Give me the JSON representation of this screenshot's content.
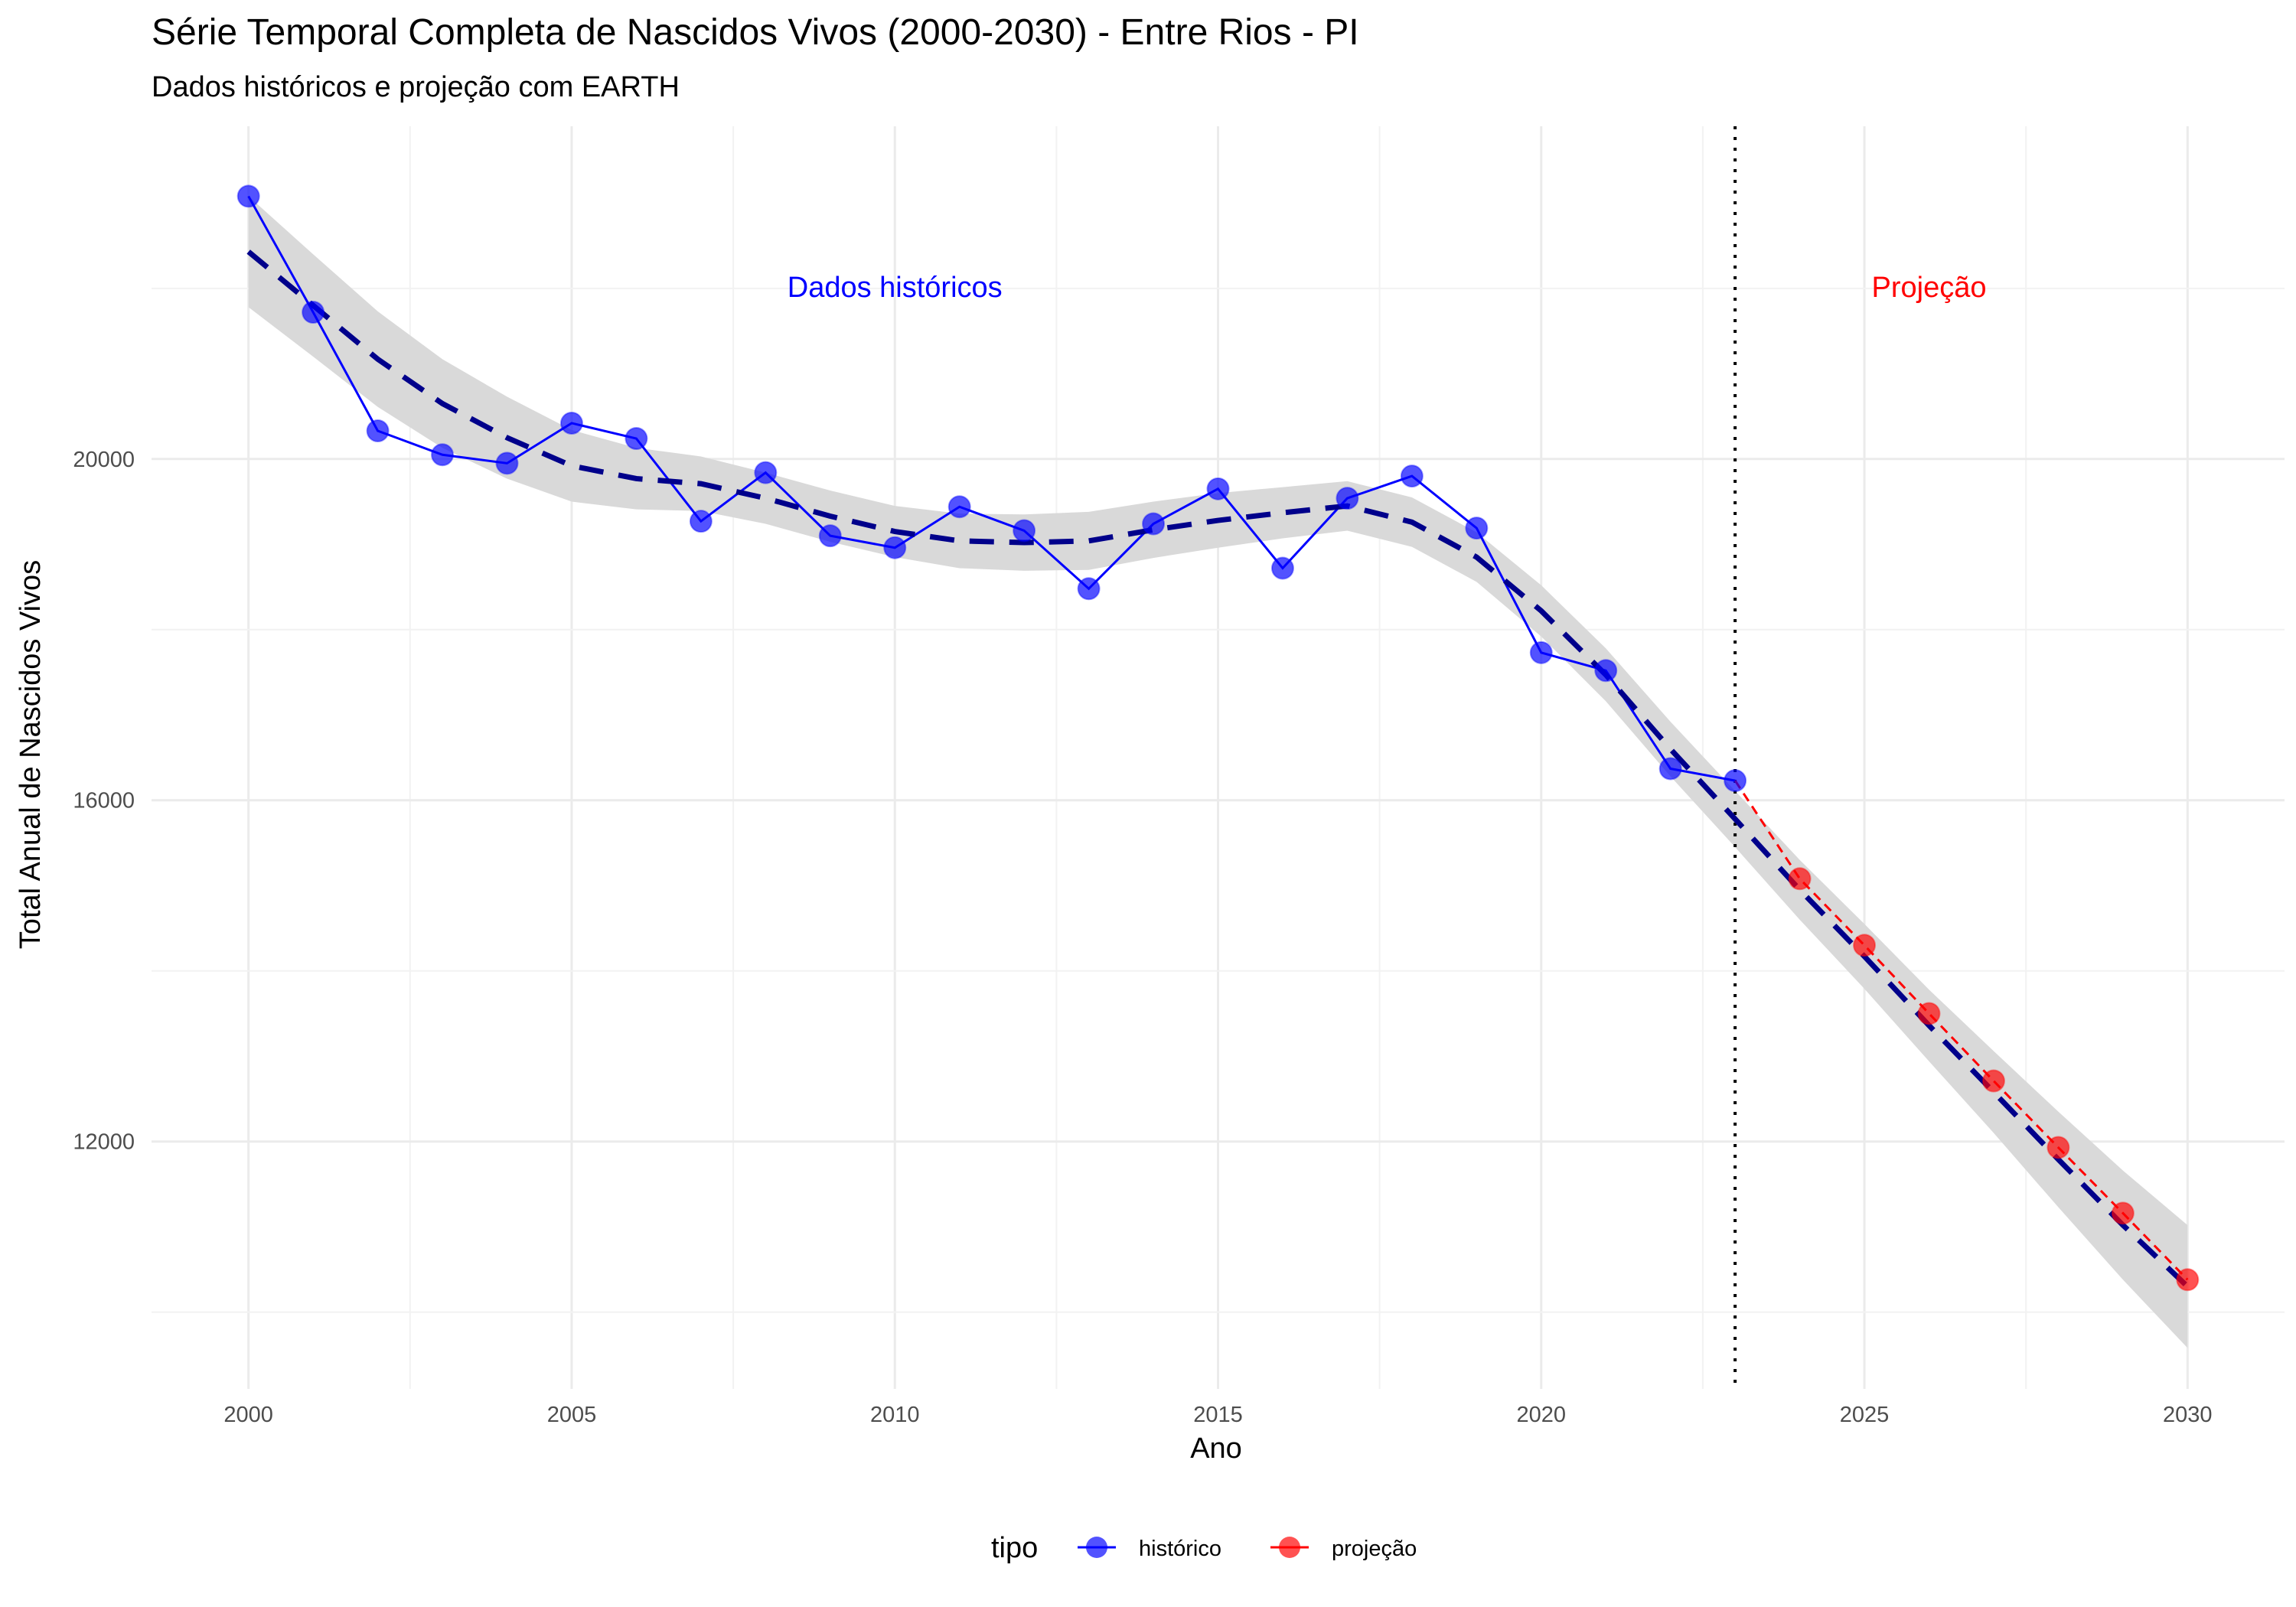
{
  "chart_data": {
    "type": "line",
    "title": "Série Temporal Completa de Nascidos Vivos (2000-2030) -  Entre Rios - PI",
    "subtitle": "Dados históricos e projeção com EARTH",
    "xlabel": "Ano",
    "ylabel": "Total Anual de Nascidos Vivos",
    "xlim": [
      1998.5,
      2031.5
    ],
    "ylim": [
      9100,
      23900
    ],
    "x_ticks": [
      2000,
      2005,
      2010,
      2015,
      2020,
      2025,
      2030
    ],
    "x_tick_labels": [
      "2000",
      "2005",
      "2010",
      "2015",
      "2020",
      "2025",
      "2030"
    ],
    "y_ticks": [
      12000,
      16000,
      20000
    ],
    "y_tick_labels": [
      "12000",
      "16000",
      "20000"
    ],
    "grid": true,
    "divider_year": 2023,
    "annotations": [
      {
        "text": "Dados históricos",
        "x": 2010,
        "y": 21900,
        "color": "#0000ff"
      },
      {
        "text": "Projeção",
        "x": 2026,
        "y": 21900,
        "color": "#ff0000"
      }
    ],
    "legend": {
      "title": "tipo",
      "position": "bottom",
      "entries": [
        {
          "label": "histórico",
          "color": "#0000ff"
        },
        {
          "label": "projeção",
          "color": "#ff0000"
        }
      ]
    },
    "series": [
      {
        "name": "histórico",
        "color": "#0000ff",
        "x": [
          2000,
          2001,
          2002,
          2003,
          2004,
          2005,
          2006,
          2007,
          2008,
          2009,
          2010,
          2011,
          2012,
          2013,
          2014,
          2015,
          2016,
          2017,
          2018,
          2019,
          2020,
          2021,
          2022,
          2023
        ],
        "values": [
          23080,
          21720,
          20330,
          20050,
          19950,
          20420,
          20240,
          19270,
          19840,
          19100,
          18960,
          19440,
          19160,
          18480,
          19240,
          19650,
          18720,
          19540,
          19800,
          19190,
          17730,
          17520,
          16370,
          16230
        ]
      },
      {
        "name": "projeção",
        "color": "#ff0000",
        "x": [
          2024,
          2025,
          2026,
          2027,
          2028,
          2029,
          2030
        ],
        "values": [
          15080,
          14300,
          13500,
          12710,
          11930,
          11160,
          10380
        ]
      }
    ],
    "trend": {
      "style": "dashed",
      "color": "#00008b",
      "band_color": "#d9d9d9",
      "x": [
        2000,
        2001,
        2002,
        2003,
        2004,
        2005,
        2006,
        2007,
        2008,
        2009,
        2010,
        2011,
        2012,
        2013,
        2014,
        2015,
        2016,
        2017,
        2018,
        2019,
        2020,
        2021,
        2022,
        2023,
        2024,
        2025,
        2026,
        2027,
        2028,
        2029,
        2030
      ],
      "values": [
        22430,
        21800,
        21170,
        20650,
        20250,
        19920,
        19770,
        19710,
        19540,
        19330,
        19150,
        19040,
        19020,
        19040,
        19170,
        19280,
        19370,
        19450,
        19260,
        18850,
        18220,
        17470,
        16600,
        15780,
        14950,
        14170,
        13360,
        12580,
        11790,
        11020,
        10300
      ],
      "band_halfwidth": [
        650,
        600,
        560,
        520,
        480,
        420,
        360,
        320,
        300,
        300,
        300,
        320,
        330,
        340,
        330,
        320,
        300,
        290,
        290,
        290,
        300,
        310,
        320,
        330,
        350,
        380,
        420,
        480,
        560,
        640,
        720
      ]
    }
  }
}
